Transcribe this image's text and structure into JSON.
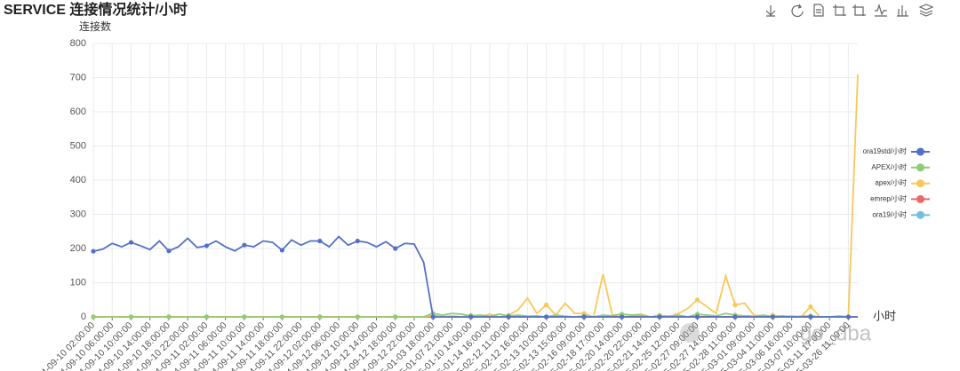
{
  "chart_data": {
    "type": "line",
    "title": "SERVICE 连接情况统计/小时",
    "y_label": "连接数",
    "x_label": "小时",
    "watermark": "go_dba",
    "grid": true,
    "legend_position": "right",
    "ylim": [
      0,
      800
    ],
    "yticks": [
      0,
      100,
      200,
      300,
      400,
      500,
      600,
      700,
      800
    ],
    "categories": [
      "2024-09-10 02:00:00",
      null,
      "2024-09-10 06:00:00",
      null,
      "2024-09-10 10:00:00",
      null,
      "2024-09-10 14:00:00",
      null,
      "2024-09-10 18:00:00",
      null,
      "2024-09-10 22:00:00",
      null,
      "2024-09-11 02:00:00",
      null,
      "2024-09-11 06:00:00",
      null,
      "2024-09-11 10:00:00",
      null,
      "2024-09-11 14:00:00",
      null,
      "2024-09-11 18:00:00",
      null,
      "2024-09-11 22:00:00",
      null,
      "2024-09-12 02:00:00",
      null,
      "2024-09-12 06:00:00",
      null,
      "2024-09-12 10:00:00",
      null,
      "2024-09-12 14:00:00",
      null,
      "2024-09-12 18:00:00",
      null,
      "2024-09-12 22:00:00",
      null,
      "2025-01-03 18:00:00",
      null,
      "2025-01-07 21:00:00",
      null,
      "2025-01-10 14:00:00",
      null,
      "2025-01-14 16:00:00",
      null,
      "2025-02-12 11:00:00",
      null,
      "2025-02-12 16:00:00",
      null,
      "2025-02-13 10:00:00",
      null,
      "2025-02-13 15:00:00",
      null,
      "2025-02-16 09:00:00",
      null,
      "2025-02-18 17:00:00",
      null,
      "2025-02-20 14:00:00",
      null,
      "2025-02-20 22:00:00",
      null,
      "2025-02-21 14:00:00",
      null,
      "2025-02-25 12:00:00",
      null,
      "2025-02-27 09:00:00",
      null,
      "2025-02-27 14:00:00",
      null,
      "2025-02-28 11:00:00",
      null,
      "2025-03-01 09:00:00",
      null,
      "2025-03-04 11:00:00",
      null,
      "2025-03-06 16:00:00",
      null,
      "2025-03-07 10:00:00",
      null,
      "2025-03-11 17:00:00",
      null,
      "2025-03-26 11:00:00",
      null
    ],
    "series": [
      {
        "name": "ora19std/小时",
        "color": "#5470c6",
        "values": [
          192,
          198,
          215,
          205,
          218,
          208,
          197,
          222,
          193,
          205,
          230,
          203,
          208,
          222,
          205,
          193,
          210,
          205,
          222,
          218,
          195,
          225,
          210,
          222,
          222,
          205,
          235,
          210,
          222,
          218,
          205,
          220,
          200,
          215,
          213,
          160,
          0,
          0,
          0,
          0,
          0,
          0,
          0,
          0,
          0,
          0,
          0,
          0,
          0,
          0,
          0,
          0,
          0,
          0,
          0,
          0,
          0,
          0,
          0,
          0,
          0,
          0,
          0,
          0,
          0,
          0,
          0,
          0,
          0,
          0,
          0,
          0,
          0,
          0,
          0,
          0,
          0,
          0,
          0,
          0,
          0,
          0
        ]
      },
      {
        "name": "APEX/小时",
        "color": "#91cc75",
        "values": [
          0,
          0,
          0,
          0,
          0,
          0,
          0,
          0,
          0,
          0,
          0,
          0,
          0,
          0,
          0,
          0,
          0,
          0,
          0,
          0,
          0,
          0,
          0,
          0,
          0,
          0,
          0,
          0,
          0,
          0,
          0,
          0,
          0,
          0,
          0,
          0,
          10,
          5,
          10,
          8,
          3,
          5,
          2,
          8,
          3,
          5,
          2,
          3,
          0,
          5,
          2,
          0,
          3,
          0,
          5,
          3,
          8,
          5,
          5,
          0,
          3,
          2,
          5,
          0,
          8,
          5,
          3,
          10,
          5,
          3,
          2,
          5,
          0,
          3,
          0,
          2,
          3,
          0,
          0,
          2,
          0,
          0
        ]
      },
      {
        "name": "apex/小时",
        "color": "#fac858",
        "values": [
          0,
          0,
          0,
          0,
          0,
          0,
          0,
          0,
          0,
          0,
          0,
          0,
          0,
          0,
          0,
          0,
          0,
          0,
          0,
          0,
          0,
          0,
          0,
          0,
          0,
          0,
          0,
          0,
          0,
          0,
          0,
          0,
          0,
          0,
          0,
          0,
          5,
          0,
          3,
          0,
          5,
          0,
          8,
          0,
          5,
          20,
          55,
          10,
          35,
          5,
          40,
          10,
          10,
          0,
          125,
          5,
          8,
          5,
          8,
          0,
          5,
          0,
          10,
          25,
          50,
          30,
          10,
          120,
          35,
          40,
          5,
          0,
          5,
          0,
          3,
          0,
          30,
          0,
          0,
          3,
          0,
          710
        ]
      },
      {
        "name": "emrep/小时",
        "color": "#ee6666",
        "values": [
          0,
          0,
          0,
          0,
          0,
          0,
          0,
          0,
          0,
          0,
          0,
          0,
          0,
          0,
          0,
          0,
          0,
          0,
          0,
          0,
          0,
          0,
          0,
          0,
          0,
          0,
          0,
          0,
          0,
          0,
          0,
          0,
          0,
          0,
          0,
          0,
          0,
          0,
          0,
          0,
          0,
          0,
          0,
          0,
          0,
          0,
          0,
          0,
          0,
          0,
          0,
          0,
          0,
          0,
          0,
          0,
          0,
          0,
          0,
          0,
          0,
          0,
          0,
          0,
          0,
          0,
          0,
          0,
          0,
          0,
          0,
          0,
          0,
          0,
          0,
          0,
          0,
          0,
          0,
          0,
          0,
          0
        ]
      },
      {
        "name": "ora19/小时",
        "color": "#73c0de",
        "values": [
          0,
          0,
          0,
          0,
          0,
          0,
          0,
          0,
          0,
          0,
          0,
          0,
          0,
          0,
          0,
          0,
          0,
          0,
          0,
          0,
          0,
          0,
          0,
          0,
          0,
          0,
          0,
          0,
          0,
          0,
          0,
          0,
          0,
          0,
          0,
          0,
          0,
          0,
          0,
          0,
          0,
          0,
          0,
          0,
          0,
          0,
          0,
          0,
          0,
          0,
          0,
          0,
          0,
          0,
          0,
          0,
          0,
          0,
          0,
          0,
          0,
          0,
          0,
          0,
          0,
          0,
          0,
          0,
          0,
          0,
          0,
          0,
          0,
          0,
          0,
          0,
          0,
          0,
          0,
          0,
          0,
          0
        ]
      }
    ]
  }
}
